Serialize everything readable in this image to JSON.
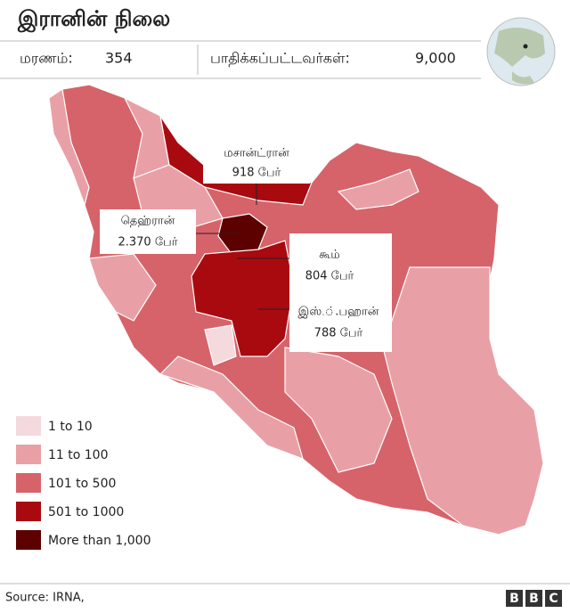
{
  "header": {
    "title": "இரானின் நிலை",
    "deaths_label": "மரணம்:",
    "deaths": "354",
    "infected_label": "பாதிக்கப்பட்டவர்கள்:",
    "infected": "9,000"
  },
  "annotations": [
    {
      "name": "மசான்ட்ரான்",
      "count": "918 பேர்"
    },
    {
      "name": "தெஹ்ரான்",
      "count": "2.370 பேர்"
    },
    {
      "name": "கூம்",
      "count": "804 பேர்"
    },
    {
      "name": "இஸ்.்.பஹான்",
      "count": "788 பேர்"
    }
  ],
  "legend": [
    {
      "label": "1 to 10",
      "color": "#f4dadd"
    },
    {
      "label": "11 to 100",
      "color": "#e8a0a6"
    },
    {
      "label": "101 to 500",
      "color": "#d6636a"
    },
    {
      "label": "501 to 1000",
      "color": "#a80a10"
    },
    {
      "label": "More than 1,000",
      "color": "#5c0000"
    }
  ],
  "footer": {
    "source": "Source: IRNA,",
    "logo": [
      "B",
      "B",
      "C"
    ]
  }
}
